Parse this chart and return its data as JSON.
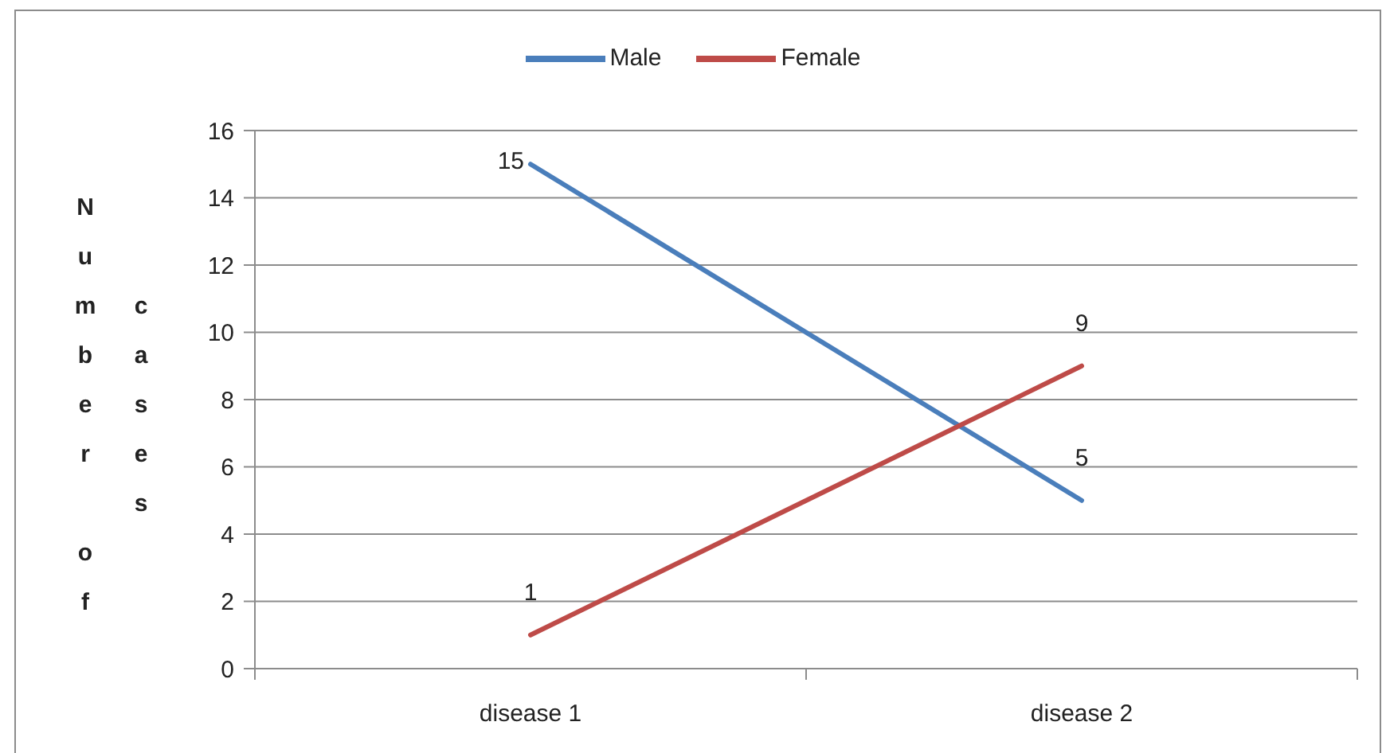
{
  "chart_data": {
    "type": "line",
    "ylabel": "Number of cases",
    "categories": [
      "disease 1",
      "disease 2"
    ],
    "series": [
      {
        "name": "Male",
        "color": "#4a7ebb",
        "values": [
          15,
          5
        ]
      },
      {
        "name": "Female",
        "color": "#be4b48",
        "values": [
          1,
          9
        ]
      }
    ],
    "ylim": [
      0,
      16
    ],
    "yticks": [
      0,
      2,
      4,
      6,
      8,
      10,
      12,
      14,
      16
    ],
    "grid": "y",
    "legend": "top",
    "data_labels": true,
    "line_style": "solid"
  }
}
